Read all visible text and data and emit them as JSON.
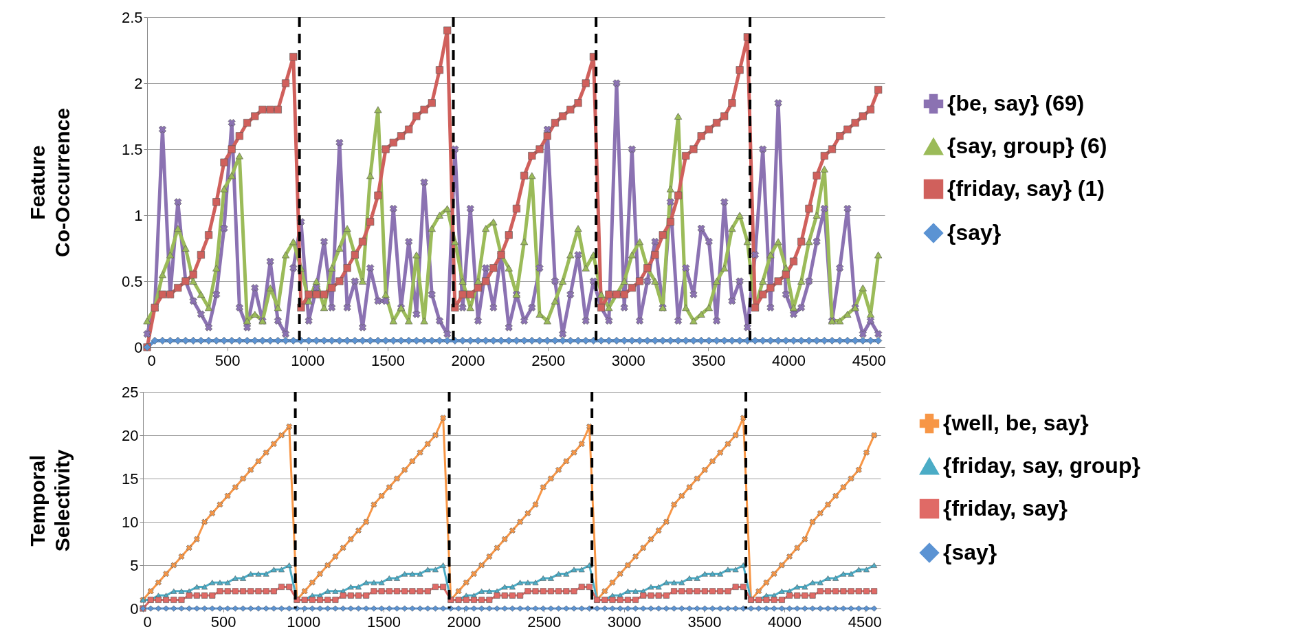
{
  "chart_data": [
    {
      "type": "line",
      "ylabel": "Feature Co-Occurrence",
      "xlim": [
        0,
        4600
      ],
      "xticks": [
        0,
        500,
        1000,
        1500,
        2000,
        2500,
        3000,
        3500,
        4000,
        4500
      ],
      "ylim": [
        0,
        2.5
      ],
      "yticks": [
        0,
        0.5,
        1,
        1.5,
        2,
        2.5
      ],
      "grid": "y",
      "legend": "right",
      "x": [
        0,
        48,
        96,
        144,
        192,
        240,
        288,
        336,
        384,
        432,
        480,
        528,
        576,
        624,
        672,
        720,
        768,
        816,
        864,
        912,
        960,
        1008,
        1056,
        1104,
        1152,
        1200,
        1248,
        1296,
        1344,
        1392,
        1440,
        1488,
        1536,
        1584,
        1632,
        1680,
        1728,
        1776,
        1824,
        1872,
        1920,
        1968,
        2016,
        2064,
        2112,
        2160,
        2208,
        2256,
        2304,
        2352,
        2400,
        2448,
        2496,
        2544,
        2592,
        2640,
        2688,
        2736,
        2784,
        2832,
        2880,
        2928,
        2976,
        3024,
        3072,
        3120,
        3168,
        3216,
        3264,
        3312,
        3360,
        3408,
        3456,
        3504,
        3552,
        3600,
        3648,
        3696,
        3744,
        3792,
        3840,
        3888,
        3936,
        3984,
        4032,
        4080,
        4128,
        4176,
        4224,
        4272,
        4320,
        4368,
        4416,
        4464,
        4512,
        4560
      ],
      "ref_lines": [
        {
          "axis": "x",
          "value": 950,
          "color": "#000000",
          "line_style": "dashed"
        },
        {
          "axis": "x",
          "value": 1910,
          "color": "#000000",
          "line_style": "dashed"
        },
        {
          "axis": "x",
          "value": 2800,
          "color": "#000000",
          "line_style": "dashed"
        },
        {
          "axis": "x",
          "value": 3760,
          "color": "#000000",
          "line_style": "dashed"
        }
      ],
      "series": [
        {
          "name": "{be, say} (69)",
          "color": "#8b72b2",
          "marker": "cross",
          "values": [
            0.1,
            0.3,
            1.65,
            0.4,
            1.1,
            0.5,
            0.35,
            0.25,
            0.15,
            0.4,
            0.9,
            1.7,
            0.3,
            0.15,
            0.45,
            0.2,
            0.65,
            0.2,
            0.1,
            0.6,
            0.95,
            0.2,
            0.45,
            0.8,
            0.3,
            1.55,
            0.3,
            0.5,
            0.15,
            0.6,
            0.35,
            0.35,
            1.05,
            0.3,
            0.8,
            0.25,
            1.25,
            0.4,
            0.2,
            0.1,
            1.5,
            0.3,
            1.05,
            0.2,
            0.6,
            0.3,
            0.7,
            0.15,
            0.4,
            0.2,
            0.3,
            0.6,
            1.65,
            0.5,
            0.1,
            0.4,
            0.7,
            0.2,
            0.5,
            0.3,
            0.2,
            2.0,
            0.3,
            1.5,
            0.2,
            0.5,
            0.8,
            0.3,
            1.1,
            0.2,
            0.6,
            0.4,
            0.9,
            0.8,
            0.2,
            1.1,
            0.35,
            0.5,
            0.15,
            0.7,
            1.5,
            0.3,
            1.85,
            0.4,
            0.25,
            0.3,
            0.5,
            0.8,
            1.05,
            0.2,
            0.6,
            1.05,
            0.3,
            0.1,
            0.2,
            0.1
          ]
        },
        {
          "name": "{say, group} (6)",
          "color": "#9bbb59",
          "marker": "triangle",
          "values": [
            0.2,
            0.3,
            0.55,
            0.7,
            0.9,
            0.75,
            0.5,
            0.4,
            0.3,
            0.6,
            1.2,
            1.3,
            1.45,
            0.2,
            0.25,
            0.2,
            0.45,
            0.3,
            0.7,
            0.8,
            0.6,
            0.35,
            0.5,
            0.3,
            0.6,
            0.75,
            0.9,
            0.7,
            0.5,
            1.3,
            1.8,
            0.4,
            0.2,
            0.3,
            0.2,
            0.7,
            0.2,
            0.9,
            1.0,
            1.05,
            0.8,
            0.5,
            0.3,
            0.5,
            0.9,
            0.95,
            0.7,
            0.6,
            0.4,
            0.8,
            1.3,
            0.25,
            0.2,
            0.35,
            0.5,
            0.7,
            0.9,
            0.6,
            0.7,
            0.4,
            0.3,
            0.4,
            0.5,
            0.7,
            0.8,
            0.6,
            0.5,
            0.3,
            1.2,
            1.75,
            0.3,
            0.2,
            0.25,
            0.3,
            0.5,
            0.6,
            0.9,
            1.0,
            0.8,
            0.3,
            0.5,
            0.7,
            0.8,
            0.6,
            0.3,
            0.5,
            0.8,
            1.0,
            1.35,
            0.2,
            0.2,
            0.25,
            0.3,
            0.45,
            0.25,
            0.7
          ]
        },
        {
          "name": "{friday, say} (1)",
          "color": "#d0605c",
          "marker": "square",
          "values": [
            0,
            0.3,
            0.4,
            0.4,
            0.45,
            0.5,
            0.55,
            0.7,
            0.85,
            1.1,
            1.4,
            1.5,
            1.6,
            1.7,
            1.75,
            1.8,
            1.8,
            1.8,
            2.0,
            2.2,
            0.3,
            0.4,
            0.4,
            0.4,
            0.45,
            0.5,
            0.6,
            0.7,
            0.8,
            0.95,
            1.15,
            1.5,
            1.55,
            1.6,
            1.65,
            1.75,
            1.8,
            1.85,
            2.1,
            2.4,
            0.3,
            0.4,
            0.4,
            0.45,
            0.5,
            0.6,
            0.7,
            0.85,
            1.05,
            1.3,
            1.45,
            1.5,
            1.6,
            1.7,
            1.75,
            1.8,
            1.85,
            2.0,
            2.2,
            0.3,
            0.4,
            0.4,
            0.4,
            0.45,
            0.5,
            0.6,
            0.7,
            0.85,
            0.95,
            1.15,
            1.45,
            1.5,
            1.6,
            1.65,
            1.7,
            1.75,
            1.85,
            2.1,
            2.35,
            0.3,
            0.4,
            0.45,
            0.5,
            0.55,
            0.65,
            0.8,
            1.05,
            1.3,
            1.45,
            1.5,
            1.6,
            1.65,
            1.7,
            1.75,
            1.8,
            1.95
          ]
        },
        {
          "name": "{say}",
          "color": "#5b93d3",
          "marker": "diamond",
          "values": [
            0,
            0.05,
            0.05,
            0.05,
            0.05,
            0.05,
            0.05,
            0.05,
            0.05,
            0.05,
            0.05,
            0.05,
            0.05,
            0.05,
            0.05,
            0.05,
            0.05,
            0.05,
            0.05,
            0.05,
            0.05,
            0.05,
            0.05,
            0.05,
            0.05,
            0.05,
            0.05,
            0.05,
            0.05,
            0.05,
            0.05,
            0.05,
            0.05,
            0.05,
            0.05,
            0.05,
            0.05,
            0.05,
            0.05,
            0.05,
            0.05,
            0.05,
            0.05,
            0.05,
            0.05,
            0.05,
            0.05,
            0.05,
            0.05,
            0.05,
            0.05,
            0.05,
            0.05,
            0.05,
            0.05,
            0.05,
            0.05,
            0.05,
            0.05,
            0.05,
            0.05,
            0.05,
            0.05,
            0.05,
            0.05,
            0.05,
            0.05,
            0.05,
            0.05,
            0.05,
            0.05,
            0.05,
            0.05,
            0.05,
            0.05,
            0.05,
            0.05,
            0.05,
            0.05,
            0.05,
            0.05,
            0.05,
            0.05,
            0.05,
            0.05,
            0.05,
            0.05,
            0.05,
            0.05,
            0.05,
            0.05,
            0.05,
            0.05,
            0.05,
            0.05,
            0.05
          ]
        }
      ]
    },
    {
      "type": "line",
      "ylabel": "Temporal Selectivity",
      "xlim": [
        0,
        4600
      ],
      "xticks": [
        0,
        500,
        1000,
        1500,
        2000,
        2500,
        3000,
        3500,
        4000,
        4500
      ],
      "ylim": [
        0,
        25
      ],
      "yticks": [
        0,
        5,
        10,
        15,
        20,
        25
      ],
      "grid": "y",
      "legend": "right",
      "x": [
        0,
        48,
        96,
        144,
        192,
        240,
        288,
        336,
        384,
        432,
        480,
        528,
        576,
        624,
        672,
        720,
        768,
        816,
        864,
        912,
        960,
        1008,
        1056,
        1104,
        1152,
        1200,
        1248,
        1296,
        1344,
        1392,
        1440,
        1488,
        1536,
        1584,
        1632,
        1680,
        1728,
        1776,
        1824,
        1872,
        1920,
        1968,
        2016,
        2064,
        2112,
        2160,
        2208,
        2256,
        2304,
        2352,
        2400,
        2448,
        2496,
        2544,
        2592,
        2640,
        2688,
        2736,
        2784,
        2832,
        2880,
        2928,
        2976,
        3024,
        3072,
        3120,
        3168,
        3216,
        3264,
        3312,
        3360,
        3408,
        3456,
        3504,
        3552,
        3600,
        3648,
        3696,
        3744,
        3792,
        3840,
        3888,
        3936,
        3984,
        4032,
        4080,
        4128,
        4176,
        4224,
        4272,
        4320,
        4368,
        4416,
        4464,
        4512,
        4560
      ],
      "ref_lines": [
        {
          "axis": "x",
          "value": 950,
          "color": "#000000",
          "line_style": "dashed"
        },
        {
          "axis": "x",
          "value": 1910,
          "color": "#000000",
          "line_style": "dashed"
        },
        {
          "axis": "x",
          "value": 2800,
          "color": "#000000",
          "line_style": "dashed"
        },
        {
          "axis": "x",
          "value": 3760,
          "color": "#000000",
          "line_style": "dashed"
        }
      ],
      "series": [
        {
          "name": "{well, be, say}",
          "color": "#f79646",
          "marker": "cross",
          "values": [
            1,
            2,
            3,
            4,
            5,
            6,
            7,
            8,
            10,
            11,
            12,
            13,
            14,
            15,
            16,
            17,
            18,
            19,
            20,
            21,
            1,
            2,
            3,
            4,
            5,
            6,
            7,
            8,
            9,
            10,
            12,
            13,
            14,
            15,
            16,
            17,
            18,
            19,
            20,
            22,
            1,
            2,
            3,
            4,
            5,
            6,
            7,
            8,
            9,
            10,
            11,
            12,
            14,
            15,
            16,
            17,
            18,
            19,
            21,
            1,
            2,
            3,
            4,
            5,
            6,
            7,
            8,
            9,
            10,
            12,
            13,
            14,
            15,
            16,
            17,
            18,
            19,
            20,
            22,
            1,
            2,
            3,
            4,
            5,
            6,
            7,
            8,
            10,
            11,
            12,
            13,
            14,
            15,
            16,
            18,
            20
          ]
        },
        {
          "name": "{friday, say, group}",
          "color": "#4bacc6",
          "marker": "triangle",
          "values": [
            1,
            1,
            1.5,
            1.5,
            2,
            2,
            2,
            2.5,
            2.5,
            3,
            3,
            3,
            3.5,
            3.5,
            4,
            4,
            4,
            4.5,
            4.5,
            5,
            1,
            1,
            1.5,
            1.5,
            2,
            2,
            2,
            2.5,
            2.5,
            3,
            3,
            3,
            3.5,
            3.5,
            4,
            4,
            4,
            4.5,
            4.5,
            5,
            1,
            1,
            1.5,
            1.5,
            2,
            2,
            2,
            2.5,
            2.5,
            3,
            3,
            3,
            3.5,
            3.5,
            4,
            4,
            4.5,
            4.5,
            5,
            1,
            1,
            1.5,
            1.5,
            2,
            2,
            2,
            2.5,
            2.5,
            3,
            3,
            3,
            3.5,
            3.5,
            4,
            4,
            4,
            4.5,
            4.5,
            5,
            1,
            1,
            1.5,
            1.5,
            2,
            2,
            2.5,
            2.5,
            3,
            3,
            3.5,
            3.5,
            4,
            4,
            4.5,
            4.5,
            5
          ]
        },
        {
          "name": "{friday, say}",
          "color": "#e06a66",
          "marker": "square",
          "values": [
            0,
            1,
            1,
            1,
            1,
            1,
            1.5,
            1.5,
            1.5,
            1.5,
            2,
            2,
            2,
            2,
            2,
            2,
            2,
            2,
            2.5,
            2.5,
            1,
            1,
            1,
            1,
            1,
            1,
            1.5,
            1.5,
            1.5,
            1.5,
            2,
            2,
            2,
            2,
            2,
            2,
            2,
            2,
            2.5,
            2.5,
            1,
            1,
            1,
            1,
            1,
            1,
            1.5,
            1.5,
            1.5,
            1.5,
            2,
            2,
            2,
            2,
            2,
            2,
            2,
            2.5,
            2.5,
            1,
            1,
            1,
            1,
            1,
            1,
            1.5,
            1.5,
            1.5,
            1.5,
            2,
            2,
            2,
            2,
            2,
            2,
            2,
            2,
            2.5,
            2.5,
            1,
            1,
            1,
            1,
            1,
            1.5,
            1.5,
            1.5,
            1.5,
            2,
            2,
            2,
            2,
            2,
            2,
            2,
            2
          ]
        },
        {
          "name": "{say}",
          "color": "#5b93d3",
          "marker": "diamond",
          "values": [
            0,
            0,
            0,
            0,
            0,
            0,
            0,
            0,
            0,
            0,
            0,
            0,
            0,
            0,
            0,
            0,
            0,
            0,
            0,
            0,
            0,
            0,
            0,
            0,
            0,
            0,
            0,
            0,
            0,
            0,
            0,
            0,
            0,
            0,
            0,
            0,
            0,
            0,
            0,
            0,
            0,
            0,
            0,
            0,
            0,
            0,
            0,
            0,
            0,
            0,
            0,
            0,
            0,
            0,
            0,
            0,
            0,
            0,
            0,
            0,
            0,
            0,
            0,
            0,
            0,
            0,
            0,
            0,
            0,
            0,
            0,
            0,
            0,
            0,
            0,
            0,
            0,
            0,
            0,
            0,
            0,
            0,
            0,
            0,
            0,
            0,
            0,
            0,
            0,
            0,
            0,
            0,
            0,
            0,
            0,
            0
          ]
        }
      ]
    }
  ]
}
